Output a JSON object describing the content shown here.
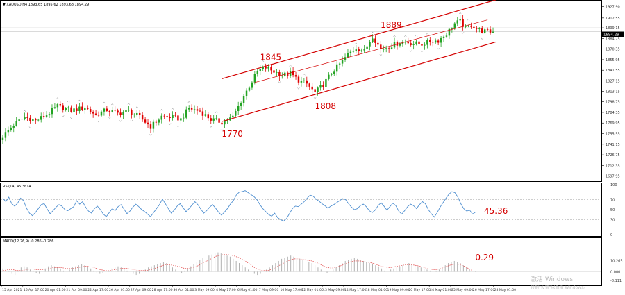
{
  "price_panel": {
    "header": "▼ XAUUSD,H4 1893.65 1895.62 1893.68 1894.29",
    "current_price_tag": "1894.29"
  },
  "rsi_panel": {
    "header": "RSI(14) 45.3614",
    "value_annotation": "45.36"
  },
  "macd_panel": {
    "header": "MACD(12,26,9) -0.286 -0.286",
    "value_annotation": "-0.29"
  },
  "watermark": {
    "line1": "激活 Windows",
    "line2": "转到\"设置\"以激活 Windows。"
  },
  "colors": {
    "bull": "#23a323",
    "bear": "#e00000",
    "channel": "#d40000",
    "annotation": "#d40000",
    "rsi_line": "#4f8fd0",
    "macd_hist": "#b0b0b0",
    "macd_signal": "#e04040",
    "grid": "#c8c8c8",
    "axis_text": "#333333",
    "price_tag_bg": "#000000",
    "price_tag_text": "#ffffff"
  },
  "chart_data": [
    {
      "type": "candlestick",
      "title": "XAUUSD,H4",
      "y_ticks": [
        1927.9,
        1912.55,
        1899.15,
        1884.75,
        1870.35,
        1855.95,
        1841.55,
        1827.15,
        1813.15,
        1798.75,
        1784.35,
        1769.95,
        1755.55,
        1741.15,
        1726.75,
        1712.35,
        1697.95
      ],
      "ylim": [
        1692,
        1935
      ],
      "current_price": 1894.29,
      "x_ticks": [
        "15 Apr 2021",
        "16 Apr 17:00",
        "20 Apr 01:00",
        "21 Apr 09:00",
        "22 Apr 17:00",
        "26 Apr 01:00",
        "27 Apr 09:00",
        "28 Apr 17:00",
        "30 Apr 01:00",
        "3 May 09:00",
        "4 May 17:00",
        "6 May 01:00",
        "7 May 09:00",
        "10 May 17:00",
        "12 May 01:00",
        "13 May 09:00",
        "14 May 17:00",
        "18 May 01:00",
        "19 May 09:00",
        "20 May 17:00",
        "24 May 01:00",
        "25 May 09:00",
        "26 May 17:00",
        "28 May 01:00"
      ],
      "anchors": [
        {
          "index": 0,
          "price": 1752
        },
        {
          "index": 4,
          "price": 1768
        },
        {
          "index": 8,
          "price": 1778
        },
        {
          "index": 12,
          "price": 1773
        },
        {
          "index": 16,
          "price": 1781
        },
        {
          "index": 20,
          "price": 1793
        },
        {
          "index": 25,
          "price": 1787
        },
        {
          "index": 30,
          "price": 1791
        },
        {
          "index": 34,
          "price": 1781
        },
        {
          "index": 38,
          "price": 1788
        },
        {
          "index": 42,
          "price": 1783
        },
        {
          "index": 46,
          "price": 1786
        },
        {
          "index": 50,
          "price": 1778
        },
        {
          "index": 54,
          "price": 1765
        },
        {
          "index": 58,
          "price": 1779
        },
        {
          "index": 62,
          "price": 1778
        },
        {
          "index": 65,
          "price": 1775
        },
        {
          "index": 68,
          "price": 1790
        },
        {
          "index": 72,
          "price": 1786
        },
        {
          "index": 76,
          "price": 1775
        },
        {
          "index": 80,
          "price": 1771
        },
        {
          "index": 84,
          "price": 1778
        },
        {
          "index": 87,
          "price": 1800
        },
        {
          "index": 90,
          "price": 1820
        },
        {
          "index": 93,
          "price": 1840
        },
        {
          "index": 96,
          "price": 1845
        },
        {
          "index": 99,
          "price": 1840
        },
        {
          "index": 102,
          "price": 1835
        },
        {
          "index": 105,
          "price": 1837
        },
        {
          "index": 108,
          "price": 1828
        },
        {
          "index": 111,
          "price": 1823
        },
        {
          "index": 114,
          "price": 1811
        },
        {
          "index": 117,
          "price": 1822
        },
        {
          "index": 120,
          "price": 1838
        },
        {
          "index": 123,
          "price": 1850
        },
        {
          "index": 126,
          "price": 1863
        },
        {
          "index": 129,
          "price": 1872
        },
        {
          "index": 132,
          "price": 1868
        },
        {
          "index": 135,
          "price": 1888
        },
        {
          "index": 138,
          "price": 1870
        },
        {
          "index": 141,
          "price": 1874
        },
        {
          "index": 144,
          "price": 1878
        },
        {
          "index": 147,
          "price": 1880
        },
        {
          "index": 150,
          "price": 1878
        },
        {
          "index": 153,
          "price": 1877
        },
        {
          "index": 156,
          "price": 1881
        },
        {
          "index": 159,
          "price": 1882
        },
        {
          "index": 162,
          "price": 1891
        },
        {
          "index": 165,
          "price": 1905
        },
        {
          "index": 167,
          "price": 1908
        },
        {
          "index": 169,
          "price": 1898
        },
        {
          "index": 171,
          "price": 1903
        },
        {
          "index": 174,
          "price": 1896
        },
        {
          "index": 177,
          "price": 1894
        }
      ],
      "channel_lines": [
        {
          "name": "upper",
          "from": {
            "index": 80,
            "price": 1830
          },
          "to": {
            "index": 180,
            "price": 1937
          }
        },
        {
          "name": "middle",
          "from": {
            "index": 92,
            "price": 1825
          },
          "to": {
            "index": 177,
            "price": 1910
          }
        },
        {
          "name": "lower",
          "from": {
            "index": 80,
            "price": 1772
          },
          "to": {
            "index": 180,
            "price": 1880
          }
        }
      ],
      "annotations": [
        {
          "text": "1845",
          "index": 97,
          "price": 1845
        },
        {
          "text": "1808",
          "index": 117,
          "price": 1808
        },
        {
          "text": "1889",
          "index": 141,
          "price": 1889
        },
        {
          "text": "1770",
          "index": 83,
          "price": 1770
        }
      ]
    },
    {
      "type": "line",
      "title": "RSI(14)",
      "ylim": [
        0,
        100
      ],
      "y_ticks": [
        100,
        70,
        50,
        30,
        0
      ],
      "levels": [
        70,
        30
      ],
      "values": [
        73,
        66,
        75,
        62,
        57,
        63,
        73,
        68,
        53,
        43,
        38,
        44,
        52,
        60,
        62,
        51,
        42,
        48,
        55,
        60,
        57,
        50,
        48,
        52,
        56,
        68,
        61,
        66,
        55,
        47,
        43,
        52,
        57,
        50,
        41,
        36,
        44,
        52,
        48,
        56,
        60,
        51,
        42,
        47,
        55,
        61,
        56,
        50,
        46,
        41,
        36,
        44,
        52,
        60,
        71,
        62,
        52,
        43,
        49,
        57,
        62,
        54,
        46,
        52,
        59,
        66,
        60,
        51,
        43,
        48,
        55,
        60,
        53,
        45,
        39,
        45,
        52,
        61,
        68,
        79,
        85,
        86,
        88,
        84,
        80,
        76,
        70,
        60,
        52,
        46,
        40,
        37,
        43,
        34,
        30,
        27,
        32,
        42,
        52,
        57,
        56,
        61,
        66,
        73,
        79,
        77,
        71,
        67,
        62,
        58,
        53,
        57,
        60,
        64,
        68,
        72,
        70,
        62,
        55,
        50,
        52,
        58,
        61,
        56,
        48,
        44,
        49,
        58,
        64,
        57,
        49,
        56,
        63,
        58,
        47,
        41,
        48,
        56,
        61,
        58,
        52,
        60,
        66,
        62,
        50,
        42,
        35,
        44,
        55,
        64,
        73,
        81,
        86,
        84,
        75,
        62,
        52,
        47,
        49,
        41,
        45.36
      ]
    },
    {
      "type": "bar",
      "title": "MACD(12,26,9)",
      "ylim": [
        -12,
        30
      ],
      "y_ticks": [
        10.265,
        0.0,
        -8.111
      ],
      "values": [
        3,
        2,
        1,
        -2,
        -3,
        1,
        4,
        5,
        4,
        2,
        1,
        -1,
        -2,
        0,
        3,
        5,
        6,
        5,
        4,
        3,
        1,
        0,
        2,
        4,
        5,
        6,
        7,
        6,
        5,
        3,
        1,
        -1,
        -2,
        -1,
        0,
        1,
        3,
        4,
        5,
        4,
        3,
        1,
        0,
        -2,
        -3,
        -2,
        0,
        2,
        4,
        5,
        6,
        7,
        8,
        9,
        8,
        6,
        4,
        2,
        0,
        -1,
        1,
        3,
        5,
        7,
        9,
        11,
        13,
        14,
        15,
        16,
        17,
        18,
        17,
        16,
        15,
        14,
        12,
        10,
        8,
        6,
        4,
        2,
        0,
        -2,
        -3,
        -2,
        0,
        2,
        4,
        6,
        8,
        10,
        12,
        13,
        14,
        15,
        14,
        13,
        12,
        11,
        10,
        9,
        8,
        6,
        4,
        2,
        0,
        -1,
        0,
        2,
        4,
        6,
        8,
        10,
        11,
        12,
        13,
        12,
        11,
        10,
        9,
        8,
        7,
        6,
        5,
        3,
        1,
        0,
        2,
        3,
        4,
        5,
        6,
        7,
        8,
        7,
        6,
        5,
        4,
        3,
        2,
        1,
        0,
        1,
        2,
        4,
        6,
        8,
        9,
        10,
        9,
        8,
        6,
        4,
        2,
        0,
        -0.29
      ],
      "signal": [
        1,
        1.5,
        2,
        2,
        1.5,
        1,
        1,
        1.5,
        2,
        2.5,
        2.5,
        2,
        2,
        2,
        2.5,
        3,
        3.5,
        4,
        4,
        4,
        3.5,
        3,
        3,
        3,
        3.5,
        4,
        4.5,
        5,
        5,
        4.5,
        4,
        3,
        2,
        1.5,
        1,
        1,
        1.5,
        2,
        2.5,
        3,
        3,
        3,
        2.5,
        2,
        1.5,
        1,
        1,
        1,
        1.5,
        2,
        3,
        4,
        5,
        6,
        6.5,
        6.5,
        6,
        5.5,
        5,
        4,
        3,
        3,
        3.5,
        4,
        5,
        6.5,
        8,
        9.5,
        11,
        12.5,
        14,
        15,
        15.5,
        16,
        16,
        15.5,
        15,
        14,
        13,
        11.5,
        10,
        8,
        6,
        4,
        2.5,
        1.5,
        1,
        1,
        1.5,
        2.5,
        4,
        5.5,
        7,
        8.5,
        10,
        11,
        12,
        12,
        12,
        11.5,
        11,
        10.5,
        10,
        9,
        8,
        6.5,
        5,
        4,
        3.5,
        3.5,
        4,
        5,
        6,
        7.5,
        8.5,
        9.5,
        10,
        10,
        10,
        9.5,
        9,
        8.5,
        8,
        7,
        6,
        5,
        4.5,
        4,
        4,
        4.5,
        5,
        5.5,
        6,
        6.5,
        6.5,
        6.5,
        6,
        5.5,
        5,
        4,
        3,
        2.5,
        2,
        2,
        2.5,
        3.5,
        4.5,
        5.5,
        6.5,
        7,
        7,
        6.5,
        5.5,
        4,
        2.5,
        1
      ]
    }
  ]
}
